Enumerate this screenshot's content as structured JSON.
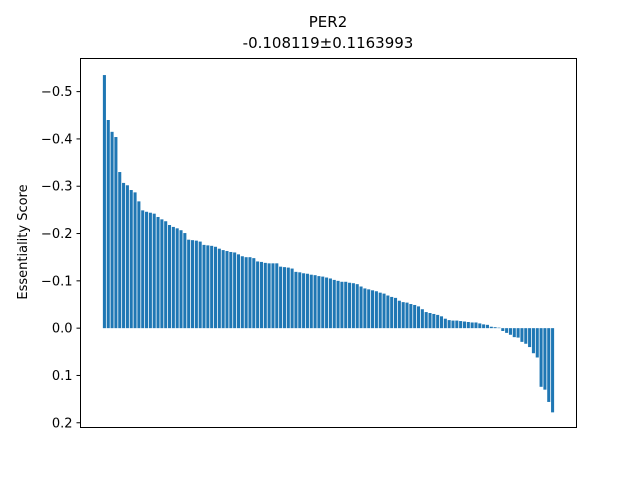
{
  "chart_data": {
    "type": "bar",
    "title": "PER2",
    "subtitle": "-0.108119±0.1163993",
    "xlabel": "",
    "ylabel": "Essentiality Score",
    "y_inverted": true,
    "ylim": [
      0.21,
      -0.57
    ],
    "yticks": [
      -0.5,
      -0.4,
      -0.3,
      -0.2,
      -0.1,
      0.0,
      0.1,
      0.2
    ],
    "ytick_labels": [
      "−0.5",
      "−0.4",
      "−0.3",
      "−0.2",
      "−0.1",
      "0.0",
      "0.1",
      "0.2"
    ],
    "grid": false,
    "bar_color": "#1f77b4",
    "values": [
      -0.535,
      -0.44,
      -0.415,
      -0.404,
      -0.33,
      -0.307,
      -0.302,
      -0.292,
      -0.287,
      -0.268,
      -0.249,
      -0.246,
      -0.244,
      -0.242,
      -0.235,
      -0.23,
      -0.226,
      -0.218,
      -0.214,
      -0.211,
      -0.207,
      -0.201,
      -0.187,
      -0.186,
      -0.185,
      -0.183,
      -0.176,
      -0.175,
      -0.174,
      -0.172,
      -0.168,
      -0.165,
      -0.163,
      -0.161,
      -0.16,
      -0.156,
      -0.152,
      -0.15,
      -0.15,
      -0.148,
      -0.141,
      -0.14,
      -0.138,
      -0.137,
      -0.137,
      -0.137,
      -0.13,
      -0.129,
      -0.128,
      -0.126,
      -0.119,
      -0.118,
      -0.116,
      -0.115,
      -0.113,
      -0.112,
      -0.11,
      -0.109,
      -0.107,
      -0.105,
      -0.102,
      -0.1,
      -0.098,
      -0.098,
      -0.096,
      -0.095,
      -0.093,
      -0.088,
      -0.084,
      -0.082,
      -0.08,
      -0.078,
      -0.075,
      -0.073,
      -0.069,
      -0.066,
      -0.064,
      -0.058,
      -0.055,
      -0.054,
      -0.051,
      -0.049,
      -0.046,
      -0.04,
      -0.034,
      -0.032,
      -0.03,
      -0.028,
      -0.025,
      -0.02,
      -0.017,
      -0.016,
      -0.016,
      -0.015,
      -0.014,
      -0.013,
      -0.012,
      -0.012,
      -0.01,
      -0.008,
      -0.007,
      -0.003,
      -0.002,
      -0.001,
      0.006,
      0.01,
      0.014,
      0.019,
      0.02,
      0.029,
      0.033,
      0.04,
      0.053,
      0.062,
      0.124,
      0.13,
      0.156,
      0.178
    ]
  }
}
